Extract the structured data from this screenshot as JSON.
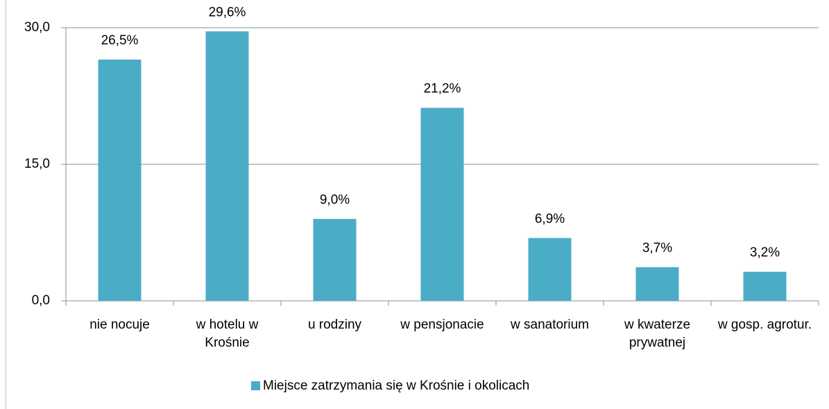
{
  "chart_data": {
    "type": "bar",
    "categories": [
      "nie nocuje",
      "w hotelu w Krośnie",
      "u rodziny",
      "w pensjonacie",
      "w sanatorium",
      "w kwaterze prywatnej",
      "w gosp. agrotur."
    ],
    "series": [
      {
        "name": "Miejsce zatrzymania się w Krośnie i okolicach",
        "color": "#4bacc6",
        "values": [
          26.5,
          29.6,
          9.0,
          21.2,
          6.9,
          3.7,
          3.2
        ],
        "value_labels": [
          "26,5%",
          "29,6%",
          "9,0%",
          "21,2%",
          "6,9%",
          "3,7%",
          "3,2%"
        ]
      }
    ],
    "ylim": [
      0,
      30
    ],
    "yticks": [
      {
        "value": 0,
        "label": "0,0"
      },
      {
        "value": 15,
        "label": "15,0"
      },
      {
        "value": 30,
        "label": "30,0"
      }
    ],
    "grid": true,
    "legend": "bottom"
  }
}
